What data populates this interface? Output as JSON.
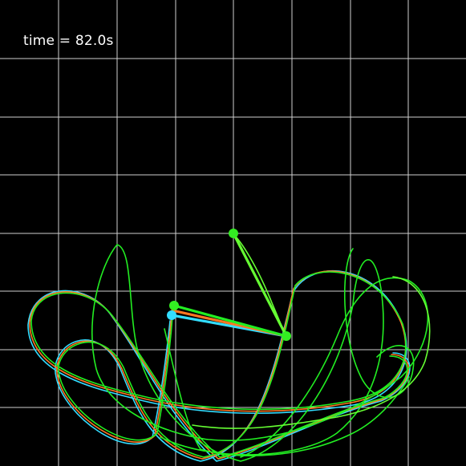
{
  "status": {
    "time_text": "time = 82.0s"
  },
  "colors": {
    "background": "#000000",
    "grid": "#d0d0d0",
    "pendulum_green": "#22ee22",
    "pendulum_lime": "#66ff33",
    "pendulum_orange": "#ff7722",
    "pendulum_cyan": "#33ddff"
  },
  "pendulums": [
    {
      "name": "cyan",
      "color": "#33ddff"
    },
    {
      "name": "orange",
      "color": "#ff7722"
    },
    {
      "name": "green",
      "color": "#22ee22"
    },
    {
      "name": "lime",
      "color": "#66ff33"
    }
  ]
}
